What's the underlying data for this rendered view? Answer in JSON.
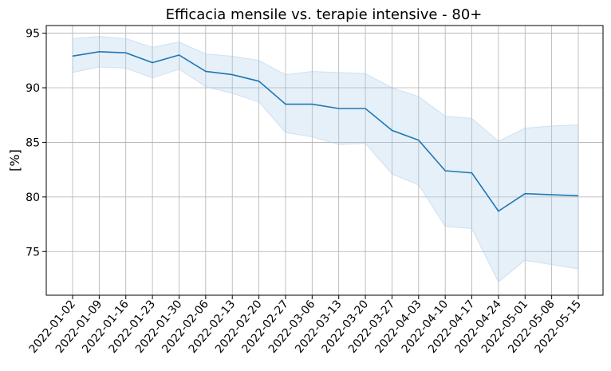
{
  "chart_data": {
    "type": "line",
    "title": "Efficacia mensile vs. terapie intensive - 80+",
    "xlabel": "",
    "ylabel": "[%]",
    "ylim": [
      71.0,
      95.7
    ],
    "yticks": [
      75,
      80,
      85,
      90,
      95
    ],
    "grid": true,
    "legend": "none",
    "x": [
      "2022-01-02",
      "2022-01-09",
      "2022-01-16",
      "2022-01-23",
      "2022-01-30",
      "2022-02-06",
      "2022-02-13",
      "2022-02-20",
      "2022-02-27",
      "2022-03-06",
      "2022-03-13",
      "2022-03-20",
      "2022-03-27",
      "2022-04-03",
      "2022-04-10",
      "2022-04-17",
      "2022-04-24",
      "2022-05-01",
      "2022-05-08",
      "2022-05-15"
    ],
    "series": [
      {
        "values": [
          92.9,
          93.3,
          93.2,
          92.3,
          93.0,
          91.5,
          91.2,
          90.6,
          88.5,
          88.5,
          88.1,
          88.1,
          86.1,
          85.2,
          82.4,
          82.2,
          78.7,
          80.3,
          80.2,
          80.1
        ],
        "lower": [
          91.4,
          91.9,
          91.8,
          90.9,
          91.7,
          90.1,
          89.5,
          88.7,
          85.9,
          85.5,
          84.8,
          84.9,
          82.1,
          81.1,
          77.3,
          77.1,
          72.2,
          74.2,
          73.8,
          73.4
        ],
        "upper": [
          94.5,
          94.7,
          94.5,
          93.7,
          94.2,
          93.1,
          92.9,
          92.5,
          91.2,
          91.5,
          91.4,
          91.3,
          90.0,
          89.2,
          87.4,
          87.2,
          85.1,
          86.3,
          86.5,
          86.6
        ],
        "color": "#1f77b4",
        "band_color": "#a6c8e8"
      }
    ]
  }
}
